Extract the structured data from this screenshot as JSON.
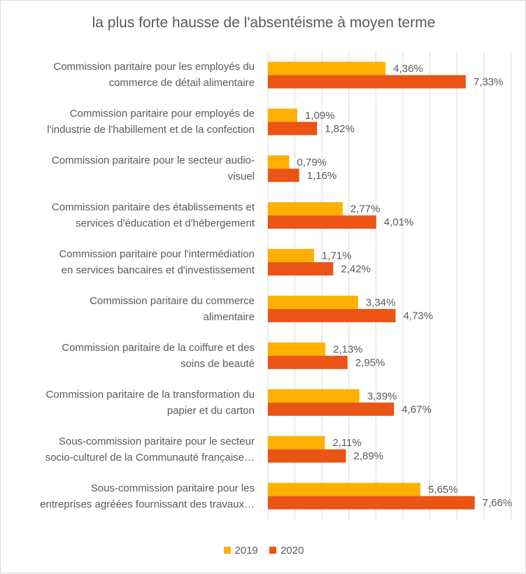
{
  "chart_data": {
    "type": "bar",
    "orientation": "horizontal",
    "title": "la plus forte hausse de l'absentéisme à moyen terme",
    "categories": [
      [
        "Commission paritaire pour les employés du",
        "commerce de détail alimentaire"
      ],
      [
        "Commission paritaire pour employés de",
        "l'industrie de l'habillement et de la confection"
      ],
      [
        "Commission paritaire pour le secteur audio-",
        "visuel"
      ],
      [
        "Commission paritaire des établissements et",
        "services d'éducation et d'hébergement"
      ],
      [
        "Commission paritaire pour l'intermédiation",
        "en services bancaires et d'investissement"
      ],
      [
        "Commission paritaire du commerce",
        "alimentaire"
      ],
      [
        "Commission paritaire de la coiffure et des",
        "soins de beauté"
      ],
      [
        "Commission paritaire de la transformation du",
        "papier et du carton"
      ],
      [
        "Sous-commission paritaire pour le secteur",
        "socio-culturel de la Communauté française…"
      ],
      [
        "Sous-commission paritaire pour les",
        "entreprises agréées fournissant des travaux…"
      ]
    ],
    "series": [
      {
        "name": "2019",
        "color": "#ffb000",
        "values": [
          4.36,
          1.09,
          0.79,
          2.77,
          1.71,
          3.34,
          2.13,
          3.39,
          2.11,
          5.65
        ],
        "labels": [
          "4,36%",
          "1,09%",
          "0,79%",
          "2,77%",
          "1,71%",
          "3,34%",
          "2,13%",
          "3,39%",
          "2,11%",
          "5,65%"
        ]
      },
      {
        "name": "2020",
        "color": "#ea5415",
        "values": [
          7.33,
          1.82,
          1.16,
          4.01,
          2.42,
          4.73,
          2.95,
          4.67,
          2.89,
          7.66
        ],
        "labels": [
          "7,33%",
          "1,82%",
          "1,16%",
          "4,01%",
          "2,42%",
          "4,73%",
          "2,95%",
          "4,67%",
          "2,89%",
          "7,66%"
        ]
      }
    ],
    "xlim": [
      0,
      9
    ],
    "grid": true,
    "legend_position": "bottom"
  }
}
